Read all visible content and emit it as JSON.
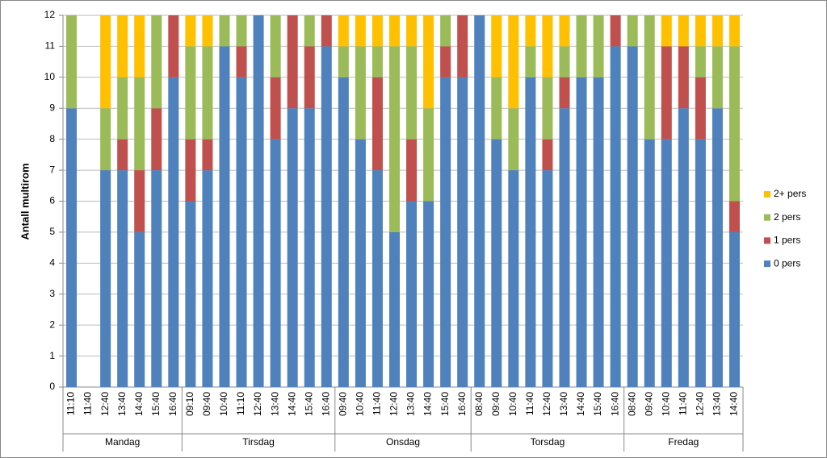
{
  "chart_data": {
    "type": "stacked-bar",
    "y_label": "Antall multirom",
    "groups": [
      {
        "name": "Mandag",
        "categories": [
          "11:10",
          "11:40",
          "12:40",
          "13:40",
          "14:40",
          "15:40",
          "16:40"
        ]
      },
      {
        "name": "Tirsdag",
        "categories": [
          "09:10",
          "09:40",
          "10:40",
          "11:10",
          "12:40",
          "13:40",
          "14:40",
          "15:40",
          "16:40"
        ]
      },
      {
        "name": "Onsdag",
        "categories": [
          "09:40",
          "10:40",
          "11:40",
          "12:40",
          "13:40",
          "14:40",
          "15:40",
          "16:40"
        ]
      },
      {
        "name": "Torsdag",
        "categories": [
          "08:40",
          "09:40",
          "10:40",
          "11:40",
          "12:40",
          "13:40",
          "14:40",
          "15:40",
          "16:40"
        ]
      },
      {
        "name": "Fredag",
        "categories": [
          "08:40",
          "09:40",
          "10:40",
          "11:40",
          "12:40",
          "13:40",
          "14:40"
        ]
      }
    ],
    "series": [
      {
        "name": "0 pers",
        "color": "#4f81bd",
        "values": [
          9,
          0,
          7,
          7,
          5,
          7,
          10,
          6,
          7,
          11,
          10,
          12,
          8,
          9,
          9,
          11,
          10,
          8,
          7,
          5,
          6,
          6,
          10,
          10,
          12,
          8,
          7,
          10,
          7,
          9,
          10,
          10,
          11,
          11,
          8,
          8,
          9,
          8,
          9,
          5
        ]
      },
      {
        "name": "1 pers",
        "color": "#c0504d",
        "values": [
          0,
          0,
          0,
          1,
          2,
          2,
          2,
          2,
          1,
          0,
          1,
          0,
          2,
          3,
          2,
          1,
          0,
          0,
          3,
          0,
          2,
          0,
          1,
          2,
          0,
          0,
          0,
          0,
          1,
          1,
          0,
          0,
          1,
          0,
          0,
          3,
          2,
          2,
          0,
          1
        ]
      },
      {
        "name": "2 pers",
        "color": "#9bbb59",
        "values": [
          3,
          0,
          2,
          2,
          3,
          3,
          0,
          3,
          3,
          1,
          1,
          0,
          2,
          0,
          1,
          0,
          1,
          3,
          1,
          6,
          3,
          3,
          1,
          0,
          0,
          2,
          2,
          1,
          2,
          1,
          2,
          2,
          0,
          1,
          4,
          0,
          0,
          1,
          2,
          5
        ]
      },
      {
        "name": "2+ pers",
        "color": "#ffc000",
        "values": [
          0,
          0,
          3,
          2,
          2,
          0,
          0,
          1,
          1,
          0,
          0,
          0,
          0,
          0,
          0,
          0,
          1,
          1,
          1,
          1,
          1,
          3,
          0,
          0,
          0,
          2,
          3,
          1,
          2,
          1,
          0,
          0,
          0,
          0,
          0,
          1,
          1,
          1,
          1,
          1
        ]
      }
    ],
    "ylim": [
      0,
      12
    ],
    "yticks": [
      0,
      1,
      2,
      3,
      4,
      5,
      6,
      7,
      8,
      9,
      10,
      11,
      12
    ],
    "grid": true,
    "legend": "right"
  }
}
